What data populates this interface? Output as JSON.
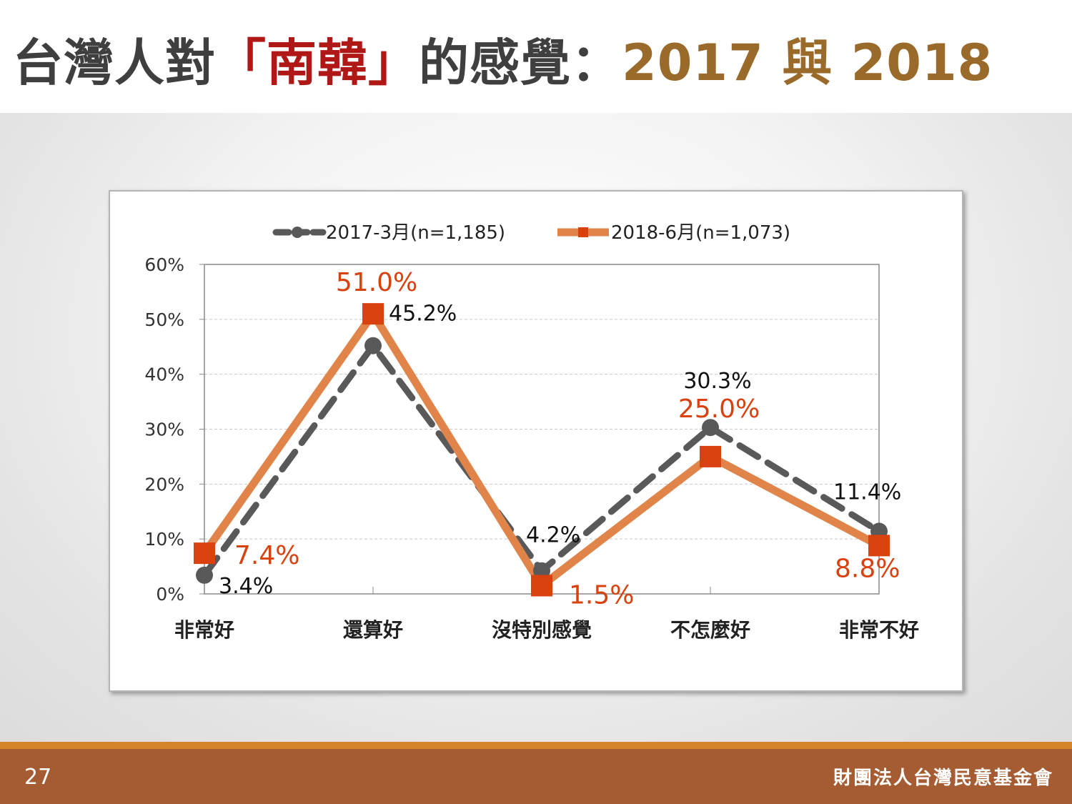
{
  "title": {
    "part1": "台灣人對",
    "part2": "「南韓」",
    "part3": "的感覺：",
    "part4": "2017 與 2018"
  },
  "colors": {
    "series_2017": "#595959",
    "series_2018": "#e0844a",
    "marker_2018": "#d9410f",
    "label_2018": "#d9410f",
    "title_red": "#b01818",
    "title_gold": "#9a6a2a",
    "footer": "#a65c32",
    "footer_line": "#d4832a"
  },
  "chart_data": {
    "type": "line",
    "categories": [
      "非常好",
      "還算好",
      "沒特別感覺",
      "不怎麼好",
      "非常不好"
    ],
    "series": [
      {
        "name": "2017-3月(n=1,185)",
        "values": [
          3.4,
          45.2,
          4.2,
          30.3,
          11.4
        ],
        "labels": [
          "3.4%",
          "45.2%",
          "4.2%",
          "30.3%",
          "11.4%"
        ],
        "style": "dashed",
        "marker": "circle"
      },
      {
        "name": "2018-6月(n=1,073)",
        "values": [
          7.4,
          51.0,
          1.5,
          25.0,
          8.8
        ],
        "labels": [
          "7.4%",
          "51.0%",
          "1.5%",
          "25.0%",
          "8.8%"
        ],
        "style": "solid",
        "marker": "square"
      }
    ],
    "ylim": [
      0,
      60
    ],
    "yticks": [
      0,
      10,
      20,
      30,
      40,
      50,
      60
    ],
    "ytick_labels": [
      "0%",
      "10%",
      "20%",
      "30%",
      "40%",
      "50%",
      "60%"
    ],
    "legend_position": "top",
    "grid": "horizontal-dashed"
  },
  "footer": {
    "page_number": "27",
    "organization": "財團法人台灣民意基金會"
  }
}
